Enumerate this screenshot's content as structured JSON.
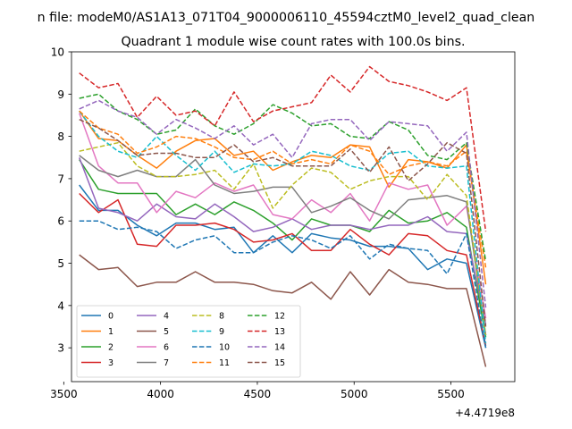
{
  "figure": {
    "suptitle": "n file: modeM0/AS1A13_071T04_9000006110_45594cztM0_level2_quad_clean",
    "title": "Quadrant 1 module wise count rates with 100.0s bins.",
    "offset_label": "+4.4719e8"
  },
  "chart_data": {
    "type": "line",
    "title": "Quadrant 1 module wise count rates with 100.0s bins.",
    "xlabel": "",
    "ylabel": "",
    "x_offset": 447190000,
    "xlim": [
      3540,
      5830
    ],
    "ylim": [
      2.2,
      10
    ],
    "xticks": [
      3500,
      4000,
      4500,
      5000,
      5500
    ],
    "yticks": [
      3,
      4,
      5,
      6,
      7,
      8,
      9,
      10
    ],
    "grid": false,
    "legend": {
      "placement": "lower-left",
      "columns": 4
    },
    "x": [
      3580,
      3680,
      3780,
      3880,
      3980,
      4080,
      4180,
      4280,
      4380,
      4480,
      4580,
      4680,
      4780,
      4880,
      4980,
      5080,
      5180,
      5280,
      5380,
      5480,
      5580,
      5680
    ],
    "series": [
      {
        "name": "0",
        "color": "#1f77b4",
        "dash": "solid",
        "values": [
          6.85,
          6.25,
          6.25,
          5.9,
          5.65,
          5.95,
          5.95,
          5.8,
          5.85,
          5.25,
          5.65,
          5.25,
          5.7,
          5.6,
          5.55,
          5.4,
          5.4,
          5.35,
          4.85,
          5.1,
          5.0,
          3.0
        ]
      },
      {
        "name": "1",
        "color": "#ff7f0e",
        "dash": "solid",
        "values": [
          8.6,
          7.95,
          7.9,
          7.55,
          7.25,
          7.65,
          7.9,
          7.95,
          7.55,
          7.65,
          7.2,
          7.4,
          7.55,
          7.5,
          7.8,
          7.75,
          6.8,
          7.45,
          7.4,
          7.25,
          7.8,
          4.5
        ]
      },
      {
        "name": "2",
        "color": "#2ca02c",
        "dash": "solid",
        "values": [
          7.45,
          6.75,
          6.65,
          6.65,
          6.65,
          6.15,
          6.4,
          6.15,
          6.45,
          6.25,
          5.95,
          5.55,
          6.05,
          5.9,
          5.9,
          5.75,
          6.25,
          5.95,
          6.0,
          6.2,
          5.85,
          3.25
        ]
      },
      {
        "name": "3",
        "color": "#d62728",
        "dash": "solid",
        "values": [
          6.65,
          6.2,
          6.5,
          5.45,
          5.4,
          5.9,
          5.9,
          5.95,
          5.8,
          5.5,
          5.55,
          5.7,
          5.3,
          5.3,
          5.8,
          5.45,
          5.2,
          5.7,
          5.65,
          5.3,
          5.2,
          3.05
        ]
      },
      {
        "name": "4",
        "color": "#9467bd",
        "dash": "solid",
        "values": [
          7.5,
          6.3,
          6.2,
          6.0,
          6.4,
          6.1,
          6.05,
          6.4,
          6.1,
          5.75,
          5.85,
          6.05,
          5.8,
          5.9,
          5.9,
          5.8,
          5.9,
          5.9,
          6.1,
          5.75,
          5.7,
          3.55
        ]
      },
      {
        "name": "5",
        "color": "#8c564b",
        "dash": "solid",
        "values": [
          5.2,
          4.85,
          4.9,
          4.45,
          4.55,
          4.55,
          4.8,
          4.55,
          4.55,
          4.5,
          4.35,
          4.3,
          4.55,
          4.15,
          4.8,
          4.25,
          4.85,
          4.55,
          4.5,
          4.4,
          4.4,
          2.55
        ]
      },
      {
        "name": "6",
        "color": "#e377c2",
        "dash": "solid",
        "values": [
          8.55,
          7.3,
          6.9,
          6.9,
          6.2,
          6.7,
          6.55,
          6.9,
          6.7,
          6.85,
          6.15,
          6.05,
          6.5,
          6.2,
          6.65,
          6.0,
          6.9,
          6.75,
          6.85,
          5.9,
          6.35,
          3.7
        ]
      },
      {
        "name": "7",
        "color": "#7f7f7f",
        "dash": "solid",
        "values": [
          7.55,
          7.2,
          7.05,
          7.2,
          7.05,
          7.05,
          7.45,
          6.85,
          6.65,
          6.7,
          6.8,
          6.8,
          6.2,
          6.35,
          6.55,
          6.25,
          6.05,
          6.5,
          6.55,
          6.6,
          6.45,
          3.3
        ]
      },
      {
        "name": "8",
        "color": "#bcbd22",
        "dash": "dashed",
        "values": [
          7.65,
          7.75,
          7.85,
          7.3,
          7.05,
          7.05,
          7.1,
          7.2,
          6.75,
          7.35,
          6.3,
          6.85,
          7.25,
          7.15,
          6.75,
          6.95,
          7.05,
          7.05,
          6.5,
          7.1,
          6.6,
          3.3
        ]
      },
      {
        "name": "9",
        "color": "#17becf",
        "dash": "dashed",
        "values": [
          8.6,
          8.0,
          7.65,
          7.5,
          8.0,
          7.55,
          7.2,
          7.65,
          7.15,
          7.35,
          7.3,
          7.35,
          7.65,
          7.55,
          7.3,
          7.2,
          7.6,
          7.65,
          7.3,
          7.25,
          7.3,
          3.1
        ]
      },
      {
        "name": "10",
        "color": "#1f77b4",
        "dash": "dashed",
        "values": [
          6.0,
          6.0,
          5.8,
          5.85,
          5.75,
          5.35,
          5.55,
          5.65,
          5.25,
          5.25,
          5.5,
          5.65,
          5.55,
          5.35,
          5.65,
          5.1,
          5.45,
          5.35,
          5.3,
          4.75,
          5.7,
          3.0
        ]
      },
      {
        "name": "11",
        "color": "#ff7f0e",
        "dash": "dashed",
        "values": [
          8.6,
          8.2,
          8.05,
          7.6,
          7.75,
          8.0,
          7.95,
          7.75,
          7.5,
          7.45,
          7.65,
          7.35,
          7.45,
          7.35,
          7.8,
          7.65,
          7.1,
          7.3,
          7.4,
          7.3,
          7.65,
          4.9
        ]
      },
      {
        "name": "12",
        "color": "#2ca02c",
        "dash": "dashed",
        "values": [
          8.9,
          9.0,
          8.6,
          8.4,
          8.05,
          8.15,
          8.65,
          8.25,
          8.05,
          8.3,
          8.75,
          8.55,
          8.25,
          8.3,
          8.0,
          7.95,
          8.35,
          8.15,
          7.55,
          7.45,
          7.85,
          5.05
        ]
      },
      {
        "name": "13",
        "color": "#d62728",
        "dash": "dashed",
        "values": [
          9.5,
          9.15,
          9.25,
          8.45,
          8.95,
          8.5,
          8.6,
          8.25,
          9.05,
          8.35,
          8.6,
          8.7,
          8.8,
          9.45,
          9.05,
          9.65,
          9.3,
          9.2,
          9.05,
          8.85,
          9.15,
          5.75
        ]
      },
      {
        "name": "14",
        "color": "#9467bd",
        "dash": "dashed",
        "values": [
          8.65,
          8.85,
          8.6,
          8.45,
          8.05,
          8.4,
          8.2,
          7.95,
          8.25,
          7.8,
          8.05,
          7.5,
          8.3,
          8.4,
          8.4,
          7.9,
          8.35,
          8.3,
          8.25,
          7.65,
          8.1,
          3.95
        ]
      },
      {
        "name": "15",
        "color": "#8c564b",
        "dash": "dashed",
        "values": [
          8.4,
          8.2,
          7.9,
          7.55,
          7.6,
          7.6,
          7.5,
          7.5,
          7.8,
          7.4,
          7.5,
          7.3,
          7.3,
          7.3,
          7.7,
          7.15,
          7.75,
          6.95,
          7.35,
          7.85,
          7.6,
          3.5
        ]
      }
    ]
  }
}
